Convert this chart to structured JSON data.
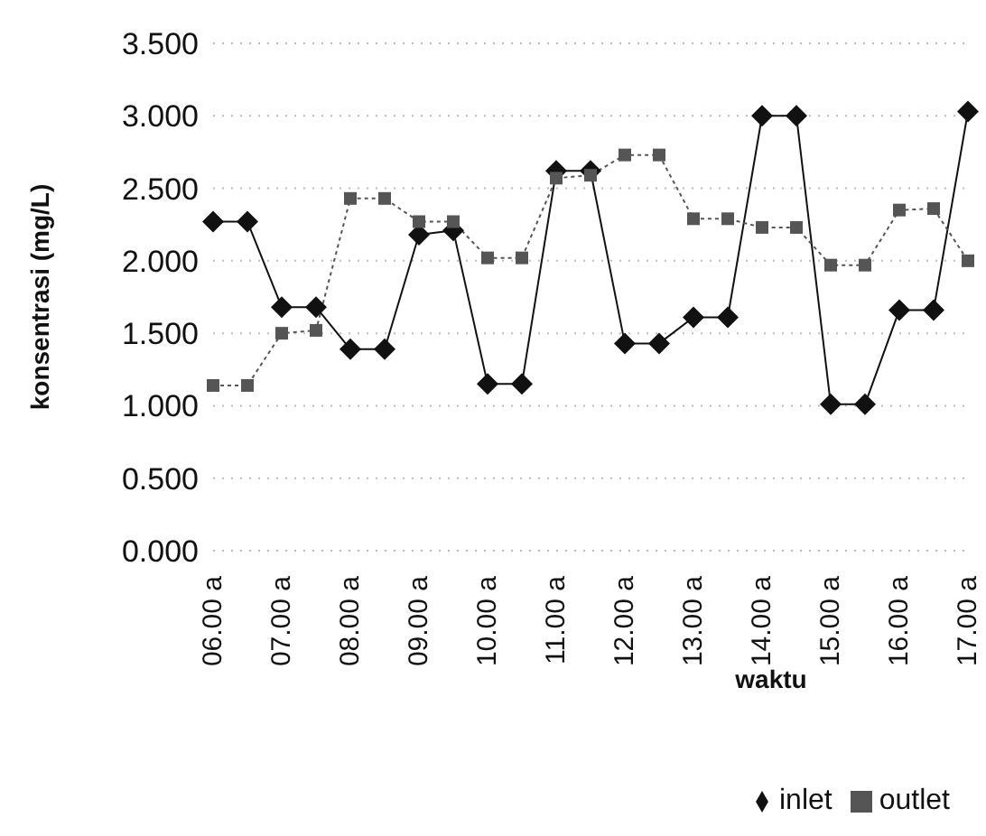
{
  "chart_data": {
    "type": "line",
    "xlabel": "waktu",
    "ylabel": "konsentrasi (mg/L)",
    "categories": [
      "06.00 a",
      null,
      "07.00 a",
      null,
      "08.00 a",
      null,
      "09.00 a",
      null,
      "10.00 a",
      null,
      "11.00 a",
      null,
      "12.00 a",
      null,
      "13.00 a",
      null,
      "14.00 a",
      null,
      "15.00 a",
      null,
      "16.00 a",
      null,
      "17.00 a"
    ],
    "series": [
      {
        "name": "inlet",
        "color": "#111111",
        "marker": "diamond",
        "line_style": "solid",
        "values": [
          2.27,
          2.27,
          1.68,
          1.68,
          1.39,
          1.39,
          2.18,
          2.21,
          1.15,
          1.15,
          2.62,
          2.62,
          1.43,
          1.43,
          1.61,
          1.61,
          3.0,
          3.0,
          1.01,
          1.01,
          1.66,
          1.66,
          3.03
        ]
      },
      {
        "name": "outlet",
        "color": "#555555",
        "marker": "square",
        "line_style": "dotted",
        "values": [
          1.14,
          1.14,
          1.5,
          1.52,
          2.43,
          2.43,
          2.27,
          2.27,
          2.02,
          2.02,
          2.57,
          2.59,
          2.73,
          2.73,
          2.29,
          2.29,
          2.23,
          2.23,
          1.97,
          1.97,
          2.35,
          2.36,
          2.0
        ]
      }
    ],
    "ylim": [
      0,
      3.5
    ],
    "yticks": [
      {
        "value": 0,
        "label": "0.000"
      },
      {
        "value": 0.5,
        "label": "0.500"
      },
      {
        "value": 1,
        "label": "1.000"
      },
      {
        "value": 1.5,
        "label": "1.500"
      },
      {
        "value": 2,
        "label": "2.000"
      },
      {
        "value": 2.5,
        "label": "2.500"
      },
      {
        "value": 3,
        "label": "3.000"
      },
      {
        "value": 3.5,
        "label": "3.500"
      }
    ],
    "grid": "y",
    "legend": "bottom right"
  }
}
